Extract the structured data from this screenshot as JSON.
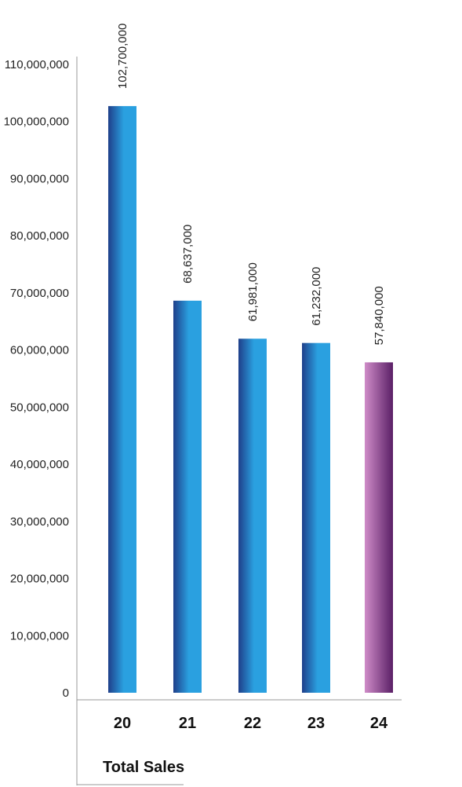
{
  "chart_data": {
    "type": "bar",
    "title": "",
    "xlabel": "Total Sales",
    "ylabel": "",
    "categories": [
      "20",
      "21",
      "22",
      "23",
      "24"
    ],
    "values": [
      102700000,
      68637000,
      61981000,
      61232000,
      57840000
    ],
    "value_labels": [
      "102,700,000",
      "68,637,000",
      "61,981,000",
      "61,232,000",
      "57,840,000"
    ],
    "ylim": [
      0,
      110000000
    ],
    "yticks": [
      0,
      10000000,
      20000000,
      30000000,
      40000000,
      50000000,
      60000000,
      70000000,
      80000000,
      90000000,
      100000000,
      110000000
    ],
    "ytick_labels": [
      "0",
      "10,000,000",
      "20,000,000",
      "30,000,000",
      "40,000,000",
      "50,000,000",
      "60,000,000",
      "70,000,000",
      "80,000,000",
      "90,000,000",
      "100,000,000",
      "110,000,000"
    ],
    "grid": false,
    "legend": "none",
    "colors": {
      "bar_dark": "#1f3f8a",
      "bar_light": "#2aa0e0",
      "highlight_dark": "#5a1f66",
      "highlight_light": "#cf8cc8",
      "axis": "#999999"
    },
    "highlight_index": 4
  }
}
